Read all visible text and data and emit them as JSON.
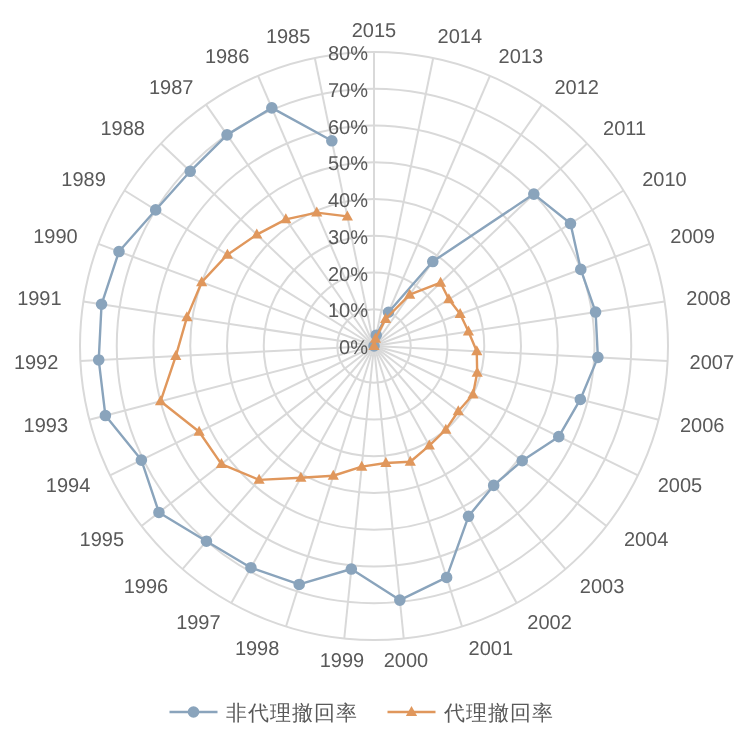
{
  "chart_data": {
    "type": "radar",
    "categories": [
      "2015",
      "2014",
      "2013",
      "2012",
      "2011",
      "2010",
      "2009",
      "2008",
      "2007",
      "2006",
      "2005",
      "2004",
      "2003",
      "2002",
      "2001",
      "2000",
      "1999",
      "1998",
      "1997",
      "1996",
      "1995",
      "1994",
      "1993",
      "1992",
      "1991",
      "1990",
      "1989",
      "1988",
      "1987",
      "1986",
      "1985"
    ],
    "series": [
      {
        "name": "非代理撤回率",
        "color": "#8aa4bc",
        "marker": "circle",
        "values": [
          0,
          3,
          10,
          28,
          60,
          63,
          60,
          61,
          61,
          58,
          56,
          51,
          50,
          53,
          66,
          69.5,
          61,
          68,
          69,
          70,
          74,
          70.5,
          75.5,
          75,
          75,
          74,
          70,
          69,
          70,
          70.5,
          57
        ]
      },
      {
        "name": "代理撤回率",
        "color": "#e0975c",
        "marker": "triangle",
        "values": [
          0,
          2,
          8,
          17,
          25,
          24,
          25,
          26,
          28,
          29,
          30,
          29,
          30,
          31,
          33,
          32,
          33,
          37,
          41,
          48,
          52.5,
          53,
          60,
          54,
          51.5,
          50,
          47,
          44,
          42,
          39.5,
          36
        ]
      }
    ],
    "ylim": [
      0,
      80
    ],
    "yticks": [
      {
        "value": 0,
        "label": "0%"
      },
      {
        "value": 10,
        "label": "10%"
      },
      {
        "value": 20,
        "label": "20%"
      },
      {
        "value": 30,
        "label": "30%"
      },
      {
        "value": 40,
        "label": "40%"
      },
      {
        "value": 50,
        "label": "50%"
      },
      {
        "value": 60,
        "label": "60%"
      },
      {
        "value": 70,
        "label": "70%"
      },
      {
        "value": 80,
        "label": "80%"
      }
    ],
    "grid": true,
    "legend": "bottom"
  }
}
